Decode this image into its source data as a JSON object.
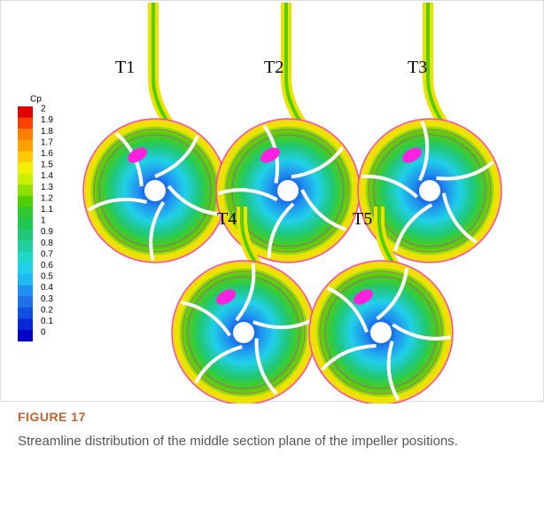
{
  "figure": {
    "panels": [
      "T1",
      "T2",
      "T3",
      "T4",
      "T5"
    ],
    "colorbar": {
      "title": "Cp",
      "levels": [
        2,
        1.9,
        1.8,
        1.7,
        1.6,
        1.5,
        1.4,
        1.3,
        1.2,
        1.1,
        1,
        0.9,
        0.8,
        0.7,
        0.6,
        0.5,
        0.4,
        0.3,
        0.2,
        0.1,
        0
      ],
      "colors": [
        "#e00000",
        "#ff4000",
        "#ff8000",
        "#ffa000",
        "#ffc800",
        "#f0f000",
        "#c8f000",
        "#90e000",
        "#50d000",
        "#30c830",
        "#20c850",
        "#20c878",
        "#20d0a0",
        "#20d8c8",
        "#20d0e8",
        "#20b8f0",
        "#2090f0",
        "#2070e8",
        "#1050e0",
        "#0828d8",
        "#0000c8"
      ]
    },
    "label": "FIGURE 17",
    "caption": "Streamline distribution of the middle section plane of the impeller positions."
  }
}
